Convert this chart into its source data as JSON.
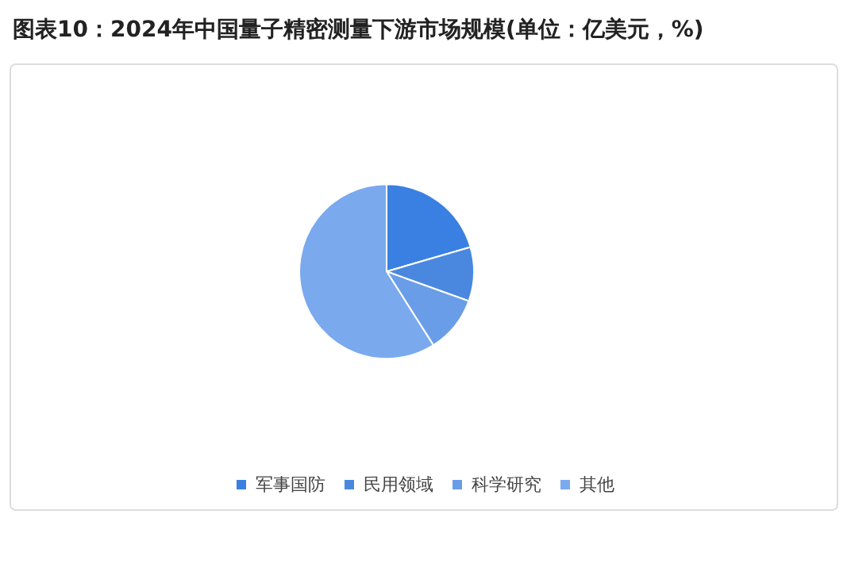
{
  "chart_data": {
    "type": "pie",
    "title": "图表10：2024年中国量子精密测量下游市场规模(单位：亿美元，%)",
    "categories": [
      "军事国防",
      "民用领域",
      "科学研究",
      "其他"
    ],
    "values": [
      20.5,
      10,
      10.5,
      59
    ],
    "colors": [
      "#3a80e2",
      "#4a88df",
      "#6a9de8",
      "#7aa9ee"
    ],
    "legend": "bottom"
  }
}
